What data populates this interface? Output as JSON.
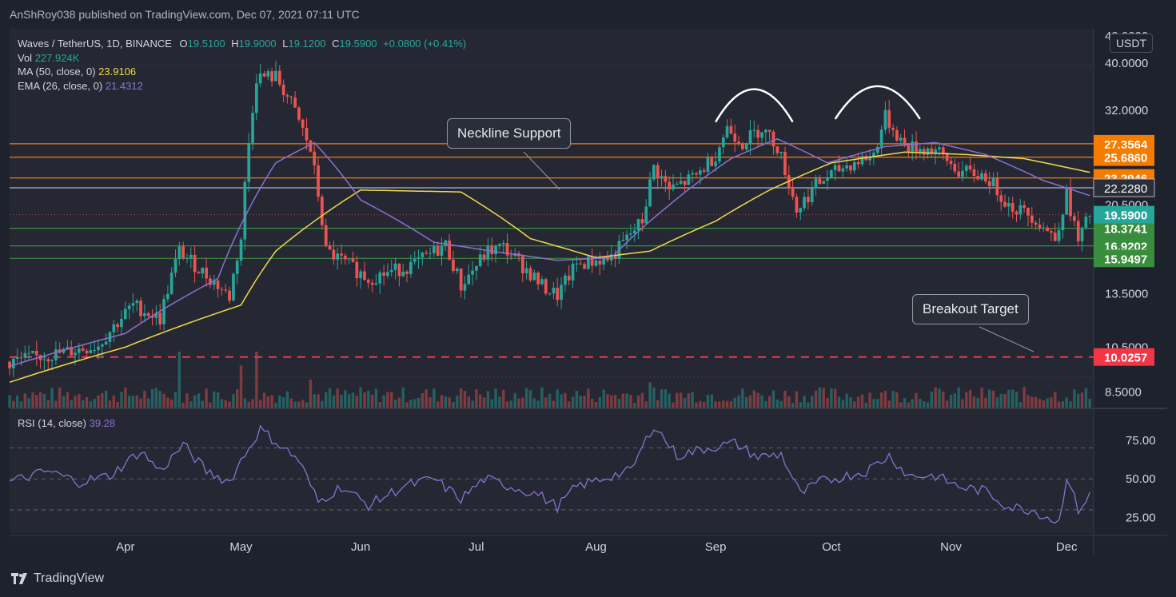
{
  "header": {
    "published": "AnShRoy038 published on TradingView.com, Dec 07, 2021 07:11 UTC"
  },
  "legend": {
    "symbol": "Waves / TetherUS, 1D, BINANCE",
    "o_label": "O",
    "o": "19.5100",
    "h_label": "H",
    "h": "19.9000",
    "l_label": "L",
    "l": "19.1200",
    "c_label": "C",
    "c": "19.5900",
    "change": "+0.0800 (+0.41%)",
    "vol_label": "Vol",
    "vol": "227.924K",
    "ma_label": "MA (50, close, 0)",
    "ma": "23.9106",
    "ema_label": "EMA (26, close, 0)",
    "ema": "21.4312"
  },
  "rsi_legend": {
    "label": "RSI (14, close)",
    "value": "39.28"
  },
  "currency": "USDT",
  "footer": {
    "brand": "TradingView"
  },
  "colors": {
    "background": "#1e222d",
    "up": "#26a69a",
    "down": "#ef5350",
    "ma": "#f0d94a",
    "ema": "#8c6fd1",
    "orange": "#f57c00",
    "green": "#388e3c",
    "red": "#f23645"
  },
  "chart_data": {
    "type": "candlestick",
    "price_axis": {
      "scale": "log",
      "range": [
        7.9,
        47
      ],
      "ticks": [
        "40.0000",
        "32.0000",
        "20.5000",
        "13.5000",
        "10.5000",
        "8.5000"
      ],
      "partial_top_label": "49.0000"
    },
    "x_axis": {
      "range": [
        "2021-03-02",
        "2021-12-08"
      ],
      "labels": [
        {
          "date": "2021-04-01",
          "label": "Apr"
        },
        {
          "date": "2021-05-01",
          "label": "May"
        },
        {
          "date": "2021-06-01",
          "label": "Jun"
        },
        {
          "date": "2021-07-01",
          "label": "Jul"
        },
        {
          "date": "2021-08-01",
          "label": "Aug"
        },
        {
          "date": "2021-09-01",
          "label": "Sep"
        },
        {
          "date": "2021-10-01",
          "label": "Oct"
        },
        {
          "date": "2021-11-01",
          "label": "Nov"
        },
        {
          "date": "2021-12-01",
          "label": "Dec"
        }
      ]
    },
    "horizontal_levels": [
      {
        "label": "27.3564",
        "color": "#f57c00"
      },
      {
        "label": "25.6860",
        "color": "#f57c00"
      },
      {
        "label": "23.2946",
        "color": "#f57c00"
      },
      {
        "label": "22.2280",
        "color": "#b2b5be"
      },
      {
        "label": "18.3741",
        "color": "#388e3c"
      },
      {
        "label": "16.9202",
        "color": "#388e3c"
      },
      {
        "label": "15.9497",
        "color": "#388e3c"
      },
      {
        "label": "10.0257",
        "color": "#f23645",
        "style": "dashed"
      }
    ],
    "last_price": {
      "label": "19.5900",
      "color": "#26a69a"
    },
    "price_keypoints": [
      [
        "2021-03-02",
        9.8
      ],
      [
        "2021-03-15",
        10.2
      ],
      [
        "2021-03-25",
        10.6
      ],
      [
        "2021-04-03",
        12.8
      ],
      [
        "2021-04-10",
        12.0
      ],
      [
        "2021-04-15",
        16.5
      ],
      [
        "2021-04-20",
        15.2
      ],
      [
        "2021-04-28",
        13.3
      ],
      [
        "2021-05-01",
        17.5
      ],
      [
        "2021-05-05",
        37.5
      ],
      [
        "2021-05-10",
        37.5
      ],
      [
        "2021-05-14",
        33.0
      ],
      [
        "2021-05-19",
        26.5
      ],
      [
        "2021-05-23",
        16.5
      ],
      [
        "2021-06-03",
        14.5
      ],
      [
        "2021-06-15",
        15.5
      ],
      [
        "2021-06-23",
        17.0
      ],
      [
        "2021-06-27",
        14.0
      ],
      [
        "2021-07-04",
        16.5
      ],
      [
        "2021-07-08",
        16.8
      ],
      [
        "2021-07-18",
        14.0
      ],
      [
        "2021-07-22",
        13.4
      ],
      [
        "2021-07-27",
        15.5
      ],
      [
        "2021-08-05",
        16.0
      ],
      [
        "2021-08-13",
        19.0
      ],
      [
        "2021-08-16",
        24.5
      ],
      [
        "2021-08-20",
        22.0
      ],
      [
        "2021-08-27",
        23.5
      ],
      [
        "2021-09-01",
        26.0
      ],
      [
        "2021-09-04",
        29.5
      ],
      [
        "2021-09-08",
        27.5
      ],
      [
        "2021-09-13",
        29.5
      ],
      [
        "2021-09-17",
        27.0
      ],
      [
        "2021-09-22",
        20.0
      ],
      [
        "2021-09-27",
        22.5
      ],
      [
        "2021-10-04",
        24.5
      ],
      [
        "2021-10-12",
        26.0
      ],
      [
        "2021-10-15",
        31.0
      ],
      [
        "2021-10-20",
        27.0
      ],
      [
        "2021-10-28",
        26.5
      ],
      [
        "2021-11-03",
        24.0
      ],
      [
        "2021-11-10",
        23.5
      ],
      [
        "2021-11-16",
        20.5
      ],
      [
        "2021-11-22",
        19.5
      ],
      [
        "2021-11-28",
        17.5
      ],
      [
        "2021-12-01",
        21.5
      ],
      [
        "2021-12-04",
        17.2
      ],
      [
        "2021-12-07",
        19.59
      ]
    ],
    "ma50_keypoints": [
      [
        "2021-03-02",
        8.9
      ],
      [
        "2021-04-01",
        10.5
      ],
      [
        "2021-05-01",
        12.8
      ],
      [
        "2021-05-10",
        16.5
      ],
      [
        "2021-06-01",
        22.0
      ],
      [
        "2021-06-27",
        21.8
      ],
      [
        "2021-07-15",
        17.5
      ],
      [
        "2021-08-01",
        16.0
      ],
      [
        "2021-08-15",
        16.5
      ],
      [
        "2021-09-01",
        19.0
      ],
      [
        "2021-09-15",
        22.0
      ],
      [
        "2021-10-01",
        25.0
      ],
      [
        "2021-10-20",
        26.3
      ],
      [
        "2021-11-05",
        26.0
      ],
      [
        "2021-11-20",
        25.5
      ],
      [
        "2021-12-07",
        23.91
      ]
    ],
    "ema26_keypoints": [
      [
        "2021-03-02",
        9.6
      ],
      [
        "2021-04-01",
        11.2
      ],
      [
        "2021-04-25",
        14.5
      ],
      [
        "2021-05-10",
        25.0
      ],
      [
        "2021-05-20",
        27.5
      ],
      [
        "2021-06-01",
        21.0
      ],
      [
        "2021-06-20",
        17.2
      ],
      [
        "2021-07-05",
        16.5
      ],
      [
        "2021-07-22",
        15.8
      ],
      [
        "2021-08-05",
        16.0
      ],
      [
        "2021-08-20",
        20.5
      ],
      [
        "2021-09-05",
        25.5
      ],
      [
        "2021-09-17",
        28.0
      ],
      [
        "2021-09-30",
        25.0
      ],
      [
        "2021-10-15",
        27.0
      ],
      [
        "2021-10-28",
        27.5
      ],
      [
        "2021-11-10",
        26.0
      ],
      [
        "2021-11-25",
        23.0
      ],
      [
        "2021-12-07",
        21.43
      ]
    ],
    "volume_spikes": [
      [
        "2021-04-15",
        1.0
      ],
      [
        "2021-05-05",
        1.0
      ],
      [
        "2021-05-01",
        0.75
      ],
      [
        "2021-05-19",
        0.5
      ],
      [
        "2021-08-15",
        0.45
      ],
      [
        "2021-06-28",
        0.3
      ],
      [
        "2021-10-15",
        0.3
      ],
      [
        "2021-12-04",
        0.25
      ]
    ],
    "rsi": {
      "label": "RSI (14, close)",
      "range": [
        15,
        95
      ],
      "ticks": [
        "75.00",
        "50.00",
        "25.00"
      ],
      "levels": [
        70,
        50,
        30
      ],
      "keypoints": [
        [
          "2021-03-02",
          48
        ],
        [
          "2021-03-12",
          55
        ],
        [
          "2021-03-20",
          48
        ],
        [
          "2021-03-28",
          52
        ],
        [
          "2021-04-05",
          68
        ],
        [
          "2021-04-10",
          55
        ],
        [
          "2021-04-16",
          72
        ],
        [
          "2021-04-22",
          55
        ],
        [
          "2021-04-28",
          48
        ],
        [
          "2021-05-01",
          62
        ],
        [
          "2021-05-06",
          82
        ],
        [
          "2021-05-11",
          72
        ],
        [
          "2021-05-16",
          62
        ],
        [
          "2021-05-21",
          35
        ],
        [
          "2021-05-27",
          45
        ],
        [
          "2021-06-03",
          33
        ],
        [
          "2021-06-12",
          45
        ],
        [
          "2021-06-20",
          50
        ],
        [
          "2021-06-27",
          37
        ],
        [
          "2021-07-03",
          50
        ],
        [
          "2021-07-10",
          45
        ],
        [
          "2021-07-17",
          40
        ],
        [
          "2021-07-22",
          32
        ],
        [
          "2021-07-27",
          45
        ],
        [
          "2021-08-05",
          52
        ],
        [
          "2021-08-10",
          55
        ],
        [
          "2021-08-16",
          85
        ],
        [
          "2021-08-22",
          65
        ],
        [
          "2021-08-30",
          70
        ],
        [
          "2021-09-06",
          73
        ],
        [
          "2021-09-12",
          64
        ],
        [
          "2021-09-18",
          66
        ],
        [
          "2021-09-23",
          40
        ],
        [
          "2021-09-28",
          48
        ],
        [
          "2021-10-05",
          52
        ],
        [
          "2021-10-10",
          55
        ],
        [
          "2021-10-16",
          65
        ],
        [
          "2021-10-21",
          52
        ],
        [
          "2021-10-28",
          52
        ],
        [
          "2021-11-03",
          45
        ],
        [
          "2021-11-10",
          42
        ],
        [
          "2021-11-16",
          32
        ],
        [
          "2021-11-22",
          30
        ],
        [
          "2021-11-29",
          22
        ],
        [
          "2021-12-01",
          52
        ],
        [
          "2021-12-04",
          30
        ],
        [
          "2021-12-07",
          39.28
        ]
      ]
    }
  },
  "annotations": {
    "neckline": "Neckline Support",
    "breakout": "Breakout Target"
  }
}
